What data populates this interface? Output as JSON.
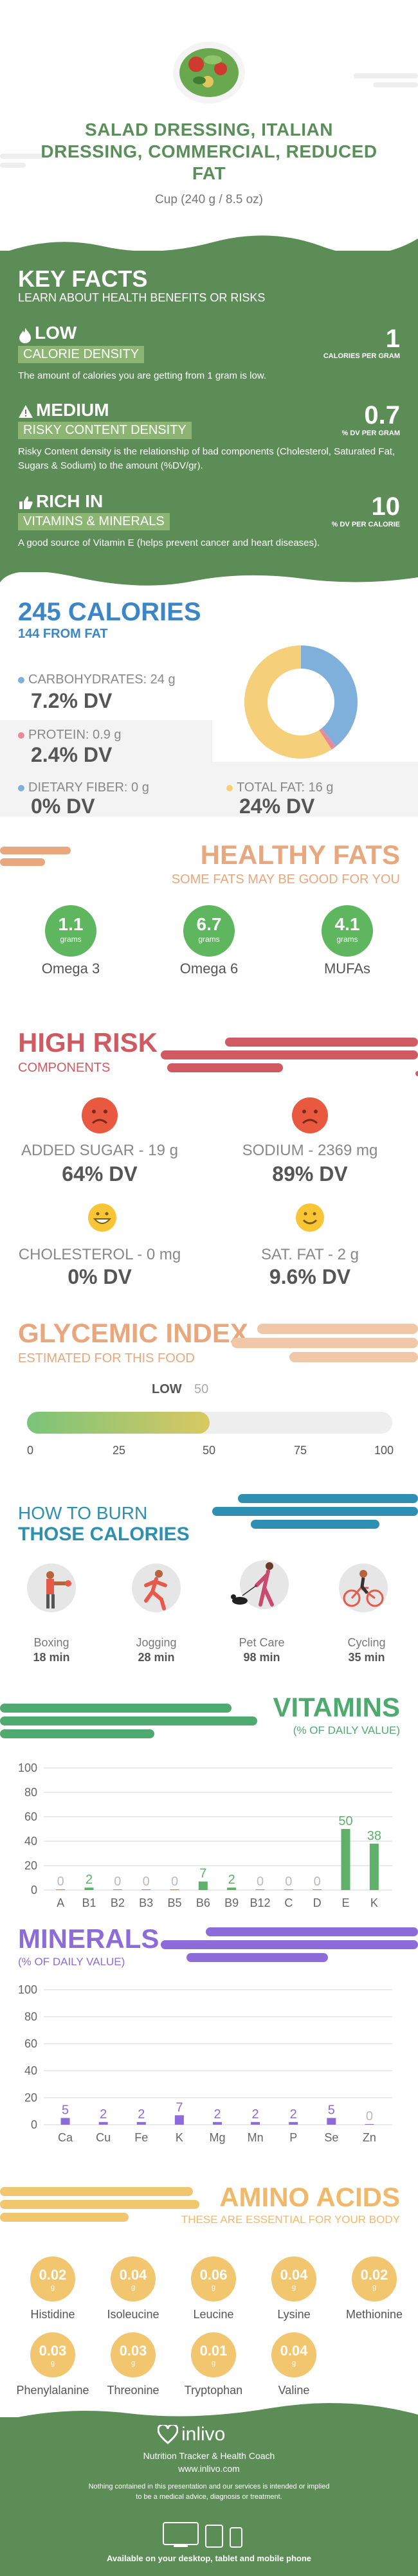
{
  "header": {
    "title_line1": "SALAD DRESSING, ITALIAN",
    "title_line2": "DRESSING, COMMERCIAL, REDUCED",
    "title_line3": "FAT",
    "serving": "Cup (240 g / 8.5 oz)"
  },
  "key_facts": {
    "title": "KEY FACTS",
    "subtitle": "LEARN ABOUT HEALTH BENEFITS OR RISKS",
    "items": [
      {
        "top": "LOW",
        "badge": "CALORIE DENSITY",
        "value": "1",
        "unit": "CALORIES PER GRAM",
        "desc": "The amount of calories you are getting from 1 gram is low.",
        "icon": "flame-icon"
      },
      {
        "top": "MEDIUM",
        "badge": "RISKY CONTENT DENSITY",
        "value": "0.7",
        "unit": "% DV PER GRAM",
        "desc": "Risky Content density is the relationship of bad components (Cholesterol, Saturated Fat, Sugars & Sodium) to the amount (%DV/gr).",
        "icon": "warning-icon"
      },
      {
        "top": "RICH IN",
        "badge": "VITAMINS & MINERALS",
        "value": "10",
        "unit": "% DV PER CALORIE",
        "desc": "A good source of Vitamin E (helps prevent cancer and heart diseases).",
        "icon": "thumbs-up-icon"
      }
    ]
  },
  "calories": {
    "title": "245 CALORIES",
    "subtitle": "144 FROM FAT",
    "macros": [
      {
        "label": "CARBOHYDRATES: 24 g",
        "value": "7.2% DV",
        "color": "#7fb0dc"
      },
      {
        "label": "PROTEIN: 0.9 g",
        "value": "2.4% DV",
        "color": "#e88a9a"
      },
      {
        "label": "DIETARY FIBER: 0 g",
        "value": "0% DV",
        "color": "#7fb0dc"
      },
      {
        "label": "TOTAL FAT: 16 g",
        "value": "24% DV",
        "color": "#f5cf7a"
      }
    ],
    "donut": {
      "carbs": 96,
      "protein": 3.6,
      "fat": 144
    }
  },
  "healthy_fats": {
    "title": "HEALTHY FATS",
    "subtitle": "SOME FATS MAY BE GOOD FOR YOU",
    "items": [
      {
        "value": "1.1",
        "unit": "grams",
        "name": "Omega 3"
      },
      {
        "value": "6.7",
        "unit": "grams",
        "name": "Omega 6"
      },
      {
        "value": "4.1",
        "unit": "grams",
        "name": "MUFAs"
      }
    ]
  },
  "high_risk": {
    "title": "HIGH RISK",
    "subtitle": "COMPONENTS",
    "items": [
      {
        "label": "ADDED SUGAR - 19 g",
        "value": "64% DV",
        "face": "sad-face-icon",
        "color": "#e8593f"
      },
      {
        "label": "SODIUM - 2369 mg",
        "value": "89% DV",
        "face": "sad-face-icon",
        "color": "#e8593f"
      },
      {
        "label": "CHOLESTEROL - 0 mg",
        "value": "0% DV",
        "face": "grin-face-icon",
        "color": "#f7c536"
      },
      {
        "label": "SAT. FAT - 2 g",
        "value": "9.6% DV",
        "face": "smile-face-icon",
        "color": "#f7c536"
      }
    ]
  },
  "glycemic": {
    "title": "GLYCEMIC INDEX",
    "subtitle": "ESTIMATED FOR THIS FOOD",
    "level": "LOW",
    "value": "50",
    "value_num": 50,
    "ticks": [
      "0",
      "25",
      "50",
      "75",
      "100"
    ]
  },
  "burn": {
    "title_line1": "HOW TO BURN",
    "title_line2": "THOSE CALORIES",
    "items": [
      {
        "name": "Boxing",
        "time": "18 min"
      },
      {
        "name": "Jogging",
        "time": "28 min"
      },
      {
        "name": "Pet Care",
        "time": "98 min"
      },
      {
        "name": "Cycling",
        "time": "35 min"
      }
    ]
  },
  "vitamins": {
    "title": "VITAMINS",
    "subtitle": "(% OF DAILY VALUE)"
  },
  "minerals": {
    "title": "MINERALS",
    "subtitle": "(% OF DAILY VALUE)"
  },
  "amino": {
    "title": "AMINO ACIDS",
    "subtitle": "THESE ARE ESSENTIAL FOR YOUR BODY",
    "items": [
      {
        "value": "0.02",
        "unit": "g",
        "name": "Histidine"
      },
      {
        "value": "0.04",
        "unit": "g",
        "name": "Isoleucine"
      },
      {
        "value": "0.06",
        "unit": "g",
        "name": "Leucine"
      },
      {
        "value": "0.04",
        "unit": "g",
        "name": "Lysine"
      },
      {
        "value": "0.02",
        "unit": "g",
        "name": "Methionine"
      },
      {
        "value": "0.03",
        "unit": "g",
        "name": "Phenylalanine"
      },
      {
        "value": "0.03",
        "unit": "g",
        "name": "Threonine"
      },
      {
        "value": "0.01",
        "unit": "g",
        "name": "Tryptophan"
      },
      {
        "value": "0.04",
        "unit": "g",
        "name": "Valine"
      }
    ]
  },
  "footer": {
    "brand": "inlivo",
    "tagline": "Nutrition Tracker & Health Coach",
    "url": "www.inlivo.com",
    "disclaimer_line1": "Nothing contained in this presentation and our services is intended or implied",
    "disclaimer_line2": "to be a medical advice, diagnosis or treatment.",
    "available": "Available on your desktop, tablet and mobile phone"
  },
  "chart_data": [
    {
      "type": "bar",
      "title": "VITAMINS",
      "ylabel": "(% OF DAILY VALUE)",
      "categories": [
        "A",
        "B1",
        "B2",
        "B3",
        "B5",
        "B6",
        "B9",
        "B12",
        "C",
        "D",
        "E",
        "K"
      ],
      "values": [
        0,
        2,
        0,
        0,
        0,
        7,
        2,
        0,
        0,
        0,
        50,
        38
      ],
      "yticks": [
        0,
        20,
        40,
        60,
        80,
        100
      ],
      "ylim": [
        0,
        100
      ],
      "color": "#5eb06a"
    },
    {
      "type": "bar",
      "title": "MINERALS",
      "ylabel": "(% OF DAILY VALUE)",
      "categories": [
        "Ca",
        "Cu",
        "Fe",
        "K",
        "Mg",
        "Mn",
        "P",
        "Se",
        "Zn"
      ],
      "values": [
        5,
        2,
        2,
        7,
        2,
        2,
        2,
        5,
        0
      ],
      "yticks": [
        0,
        20,
        40,
        60,
        80,
        100
      ],
      "ylim": [
        0,
        100
      ],
      "color": "#8d6bd8"
    }
  ]
}
